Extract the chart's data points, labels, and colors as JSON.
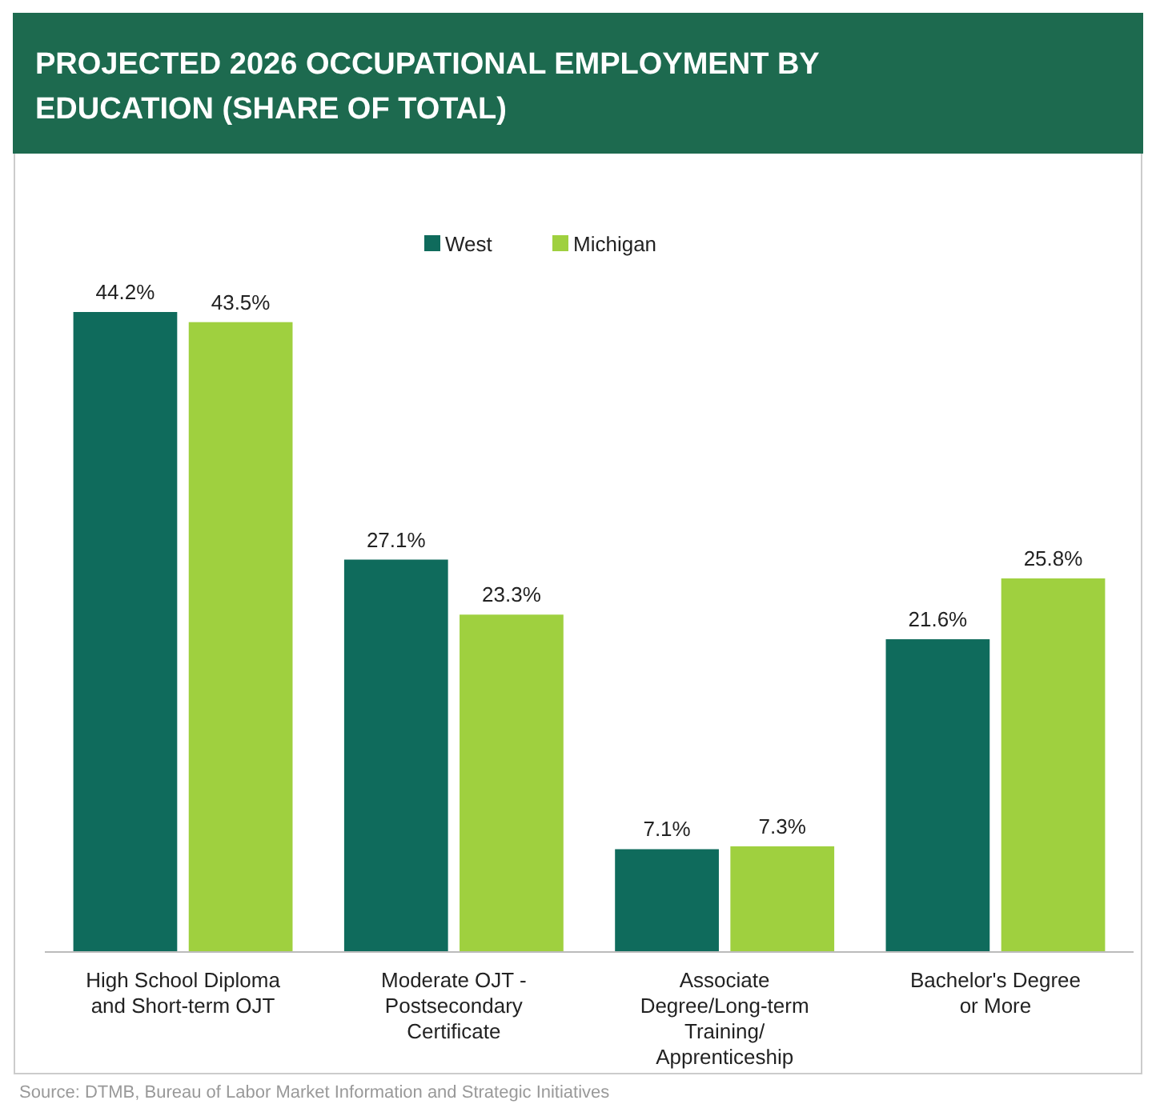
{
  "chart_data": {
    "type": "bar",
    "title": "PROJECTED 2026 OCCUPATIONAL EMPLOYMENT BY EDUCATION (SHARE OF TOTAL)",
    "categories": [
      "High School Diploma and Short-term OJT",
      "Moderate OJT - Postsecondary Certificate",
      "Associate Degree/Long-term Training/ Apprenticeship",
      "Bachelor's Degree or More"
    ],
    "series": [
      {
        "name": "West",
        "color": "#0f6b5c",
        "values": [
          44.2,
          27.1,
          7.1,
          21.6
        ],
        "value_labels": [
          "44.2%",
          "27.1%",
          "7.1%",
          "21.6%"
        ]
      },
      {
        "name": "Michigan",
        "color": "#9fd03f",
        "values": [
          43.5,
          23.3,
          7.3,
          25.8
        ],
        "value_labels": [
          "43.5%",
          "23.3%",
          "7.3%",
          "25.8%"
        ]
      }
    ],
    "legend": "top",
    "annotations": [
      "Source: DTMB, Bureau of Labor Market Information and Strategic Initiatives"
    ]
  }
}
